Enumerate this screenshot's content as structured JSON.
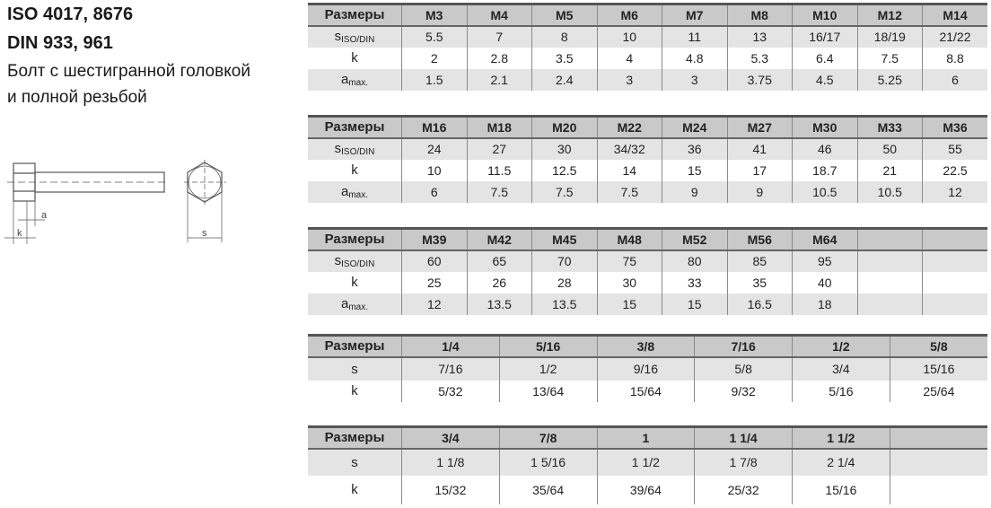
{
  "header": {
    "line1": "ISO 4017, 8676",
    "line2": "DIN 933, 961",
    "line3": "Болт с шестигранной головкой",
    "line4": "и полной резьбой"
  },
  "drawing_labels": {
    "a": "a",
    "k": "k",
    "s": "s"
  },
  "row_labels": {
    "header": "Размеры",
    "s_iso": {
      "main": "s",
      "sub": "ISO/DIN"
    },
    "k": "k",
    "a_max": {
      "main": "a",
      "sub": "max."
    },
    "s": "s"
  },
  "tables": [
    {
      "sizes": [
        "M3",
        "M4",
        "M5",
        "M6",
        "M7",
        "M8",
        "M10",
        "M12",
        "M14"
      ],
      "s": [
        "5.5",
        "7",
        "8",
        "10",
        "11",
        "13",
        "16/17",
        "18/19",
        "21/22"
      ],
      "k": [
        "2",
        "2.8",
        "3.5",
        "4",
        "4.8",
        "5.3",
        "6.4",
        "7.5",
        "8.8"
      ],
      "a": [
        "1.5",
        "2.1",
        "2.4",
        "3",
        "3",
        "3.75",
        "4.5",
        "5.25",
        "6"
      ]
    },
    {
      "sizes": [
        "M16",
        "M18",
        "M20",
        "M22",
        "M24",
        "M27",
        "M30",
        "M33",
        "M36"
      ],
      "s": [
        "24",
        "27",
        "30",
        "34/32",
        "36",
        "41",
        "46",
        "50",
        "55"
      ],
      "k": [
        "10",
        "11.5",
        "12.5",
        "14",
        "15",
        "17",
        "18.7",
        "21",
        "22.5"
      ],
      "a": [
        "6",
        "7.5",
        "7.5",
        "7.5",
        "9",
        "9",
        "10.5",
        "10.5",
        "12"
      ]
    },
    {
      "sizes": [
        "M39",
        "M42",
        "M45",
        "M48",
        "M52",
        "M56",
        "M64",
        "",
        ""
      ],
      "s": [
        "60",
        "65",
        "70",
        "75",
        "80",
        "85",
        "95",
        "",
        ""
      ],
      "k": [
        "25",
        "26",
        "28",
        "30",
        "33",
        "35",
        "40",
        "",
        ""
      ],
      "a": [
        "12",
        "13.5",
        "13.5",
        "15",
        "15",
        "16.5",
        "18",
        "",
        ""
      ]
    },
    {
      "sizes": [
        "1/4",
        "5/16",
        "3/8",
        "7/16",
        "1/2",
        "5/8"
      ],
      "s": [
        "7/16",
        "1/2",
        "9/16",
        "5/8",
        "3/4",
        "15/16"
      ],
      "k": [
        "5/32",
        "13/64",
        "15/64",
        "9/32",
        "5/16",
        "25/64"
      ]
    },
    {
      "sizes": [
        "3/4",
        "7/8",
        "1",
        "1 1/4",
        "1 1/2",
        ""
      ],
      "s": [
        "1 1/8",
        "1 5/16",
        "1 1/2",
        "1 7/8",
        "2 1/4",
        ""
      ],
      "k": [
        "15/32",
        "35/64",
        "39/64",
        "25/32",
        "15/16",
        ""
      ]
    }
  ]
}
